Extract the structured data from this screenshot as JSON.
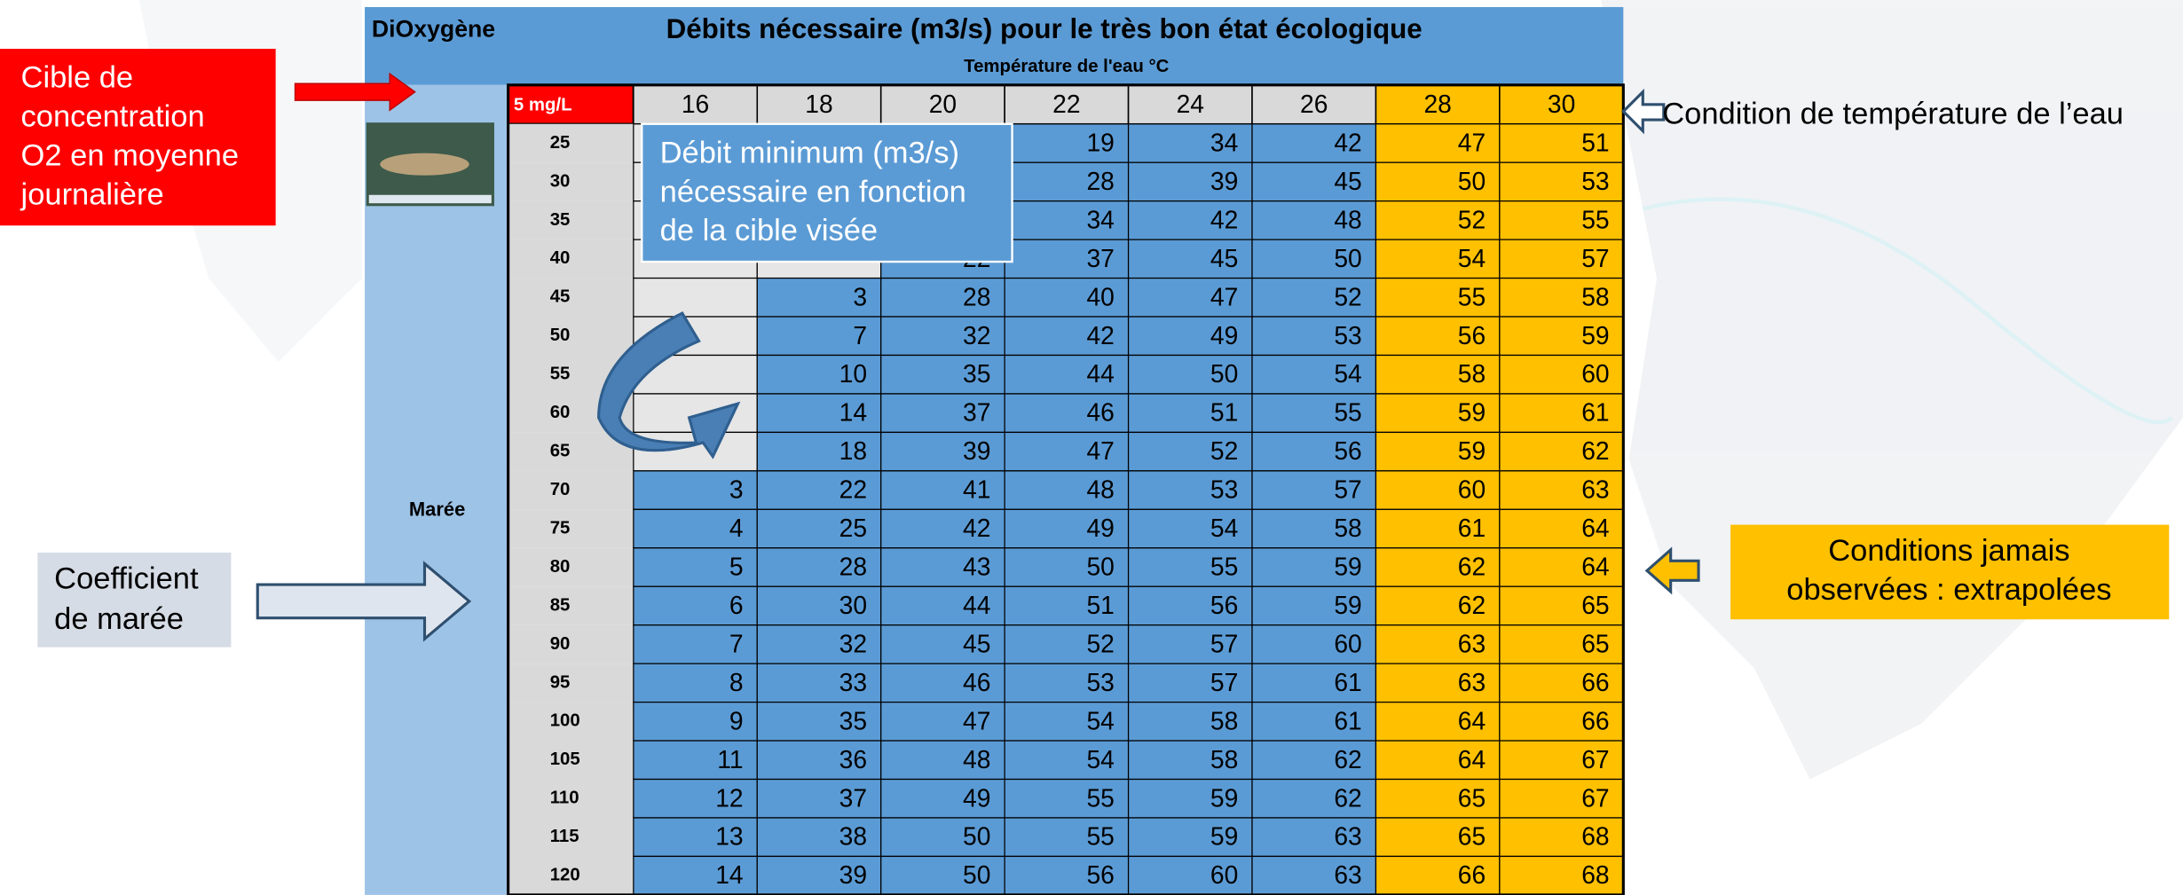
{
  "header": {
    "left_label": "DiOxygène",
    "title": "Débits nécessaire (m3/s) pour le très bon état écologique",
    "subtitle": "Température de l'eau °C"
  },
  "side_label": "Marée",
  "table": {
    "corner": "5 mg/L",
    "columns": [
      16,
      18,
      20,
      22,
      24,
      26,
      28,
      30
    ],
    "rows": [
      {
        "label": 25,
        "cells": [
          null,
          null,
          null,
          19,
          34,
          42,
          47,
          51
        ]
      },
      {
        "label": 30,
        "cells": [
          null,
          null,
          null,
          28,
          39,
          45,
          50,
          53
        ]
      },
      {
        "label": 35,
        "cells": [
          null,
          null,
          null,
          34,
          42,
          48,
          52,
          55
        ]
      },
      {
        "label": 40,
        "cells": [
          null,
          null,
          22,
          37,
          45,
          50,
          54,
          57
        ]
      },
      {
        "label": 45,
        "cells": [
          null,
          3,
          28,
          40,
          47,
          52,
          55,
          58
        ]
      },
      {
        "label": 50,
        "cells": [
          null,
          7,
          32,
          42,
          49,
          53,
          56,
          59
        ]
      },
      {
        "label": 55,
        "cells": [
          null,
          10,
          35,
          44,
          50,
          54,
          58,
          60
        ]
      },
      {
        "label": 60,
        "cells": [
          null,
          14,
          37,
          46,
          51,
          55,
          59,
          61
        ]
      },
      {
        "label": 65,
        "cells": [
          null,
          18,
          39,
          47,
          52,
          56,
          59,
          62
        ]
      },
      {
        "label": 70,
        "cells": [
          3,
          22,
          41,
          48,
          53,
          57,
          60,
          63
        ]
      },
      {
        "label": 75,
        "cells": [
          4,
          25,
          42,
          49,
          54,
          58,
          61,
          64
        ]
      },
      {
        "label": 80,
        "cells": [
          5,
          28,
          43,
          50,
          55,
          59,
          62,
          64
        ]
      },
      {
        "label": 85,
        "cells": [
          6,
          30,
          44,
          51,
          56,
          59,
          62,
          65
        ]
      },
      {
        "label": 90,
        "cells": [
          7,
          32,
          45,
          52,
          57,
          60,
          63,
          65
        ]
      },
      {
        "label": 95,
        "cells": [
          8,
          33,
          46,
          53,
          57,
          61,
          63,
          66
        ]
      },
      {
        "label": 100,
        "cells": [
          9,
          35,
          47,
          54,
          58,
          61,
          64,
          66
        ]
      },
      {
        "label": 105,
        "cells": [
          11,
          36,
          48,
          54,
          58,
          62,
          64,
          67
        ]
      },
      {
        "label": 110,
        "cells": [
          12,
          37,
          49,
          55,
          59,
          62,
          65,
          67
        ]
      },
      {
        "label": 115,
        "cells": [
          13,
          38,
          50,
          55,
          59,
          63,
          65,
          68
        ]
      },
      {
        "label": 120,
        "cells": [
          14,
          39,
          50,
          56,
          60,
          63,
          66,
          68
        ]
      }
    ]
  },
  "callouts": {
    "target": [
      "Cible de",
      "concentration",
      "O2 en moyenne",
      "journalière"
    ],
    "flow": [
      "Débit minimum (m3/s)",
      "nécessaire en fonction",
      "de la cible visée"
    ],
    "temperature": "Condition de température de l’eau",
    "extrapolated": [
      "Conditions jamais",
      "observées : extrapolées"
    ],
    "tide": [
      "Coefficient",
      "de marée"
    ]
  }
}
